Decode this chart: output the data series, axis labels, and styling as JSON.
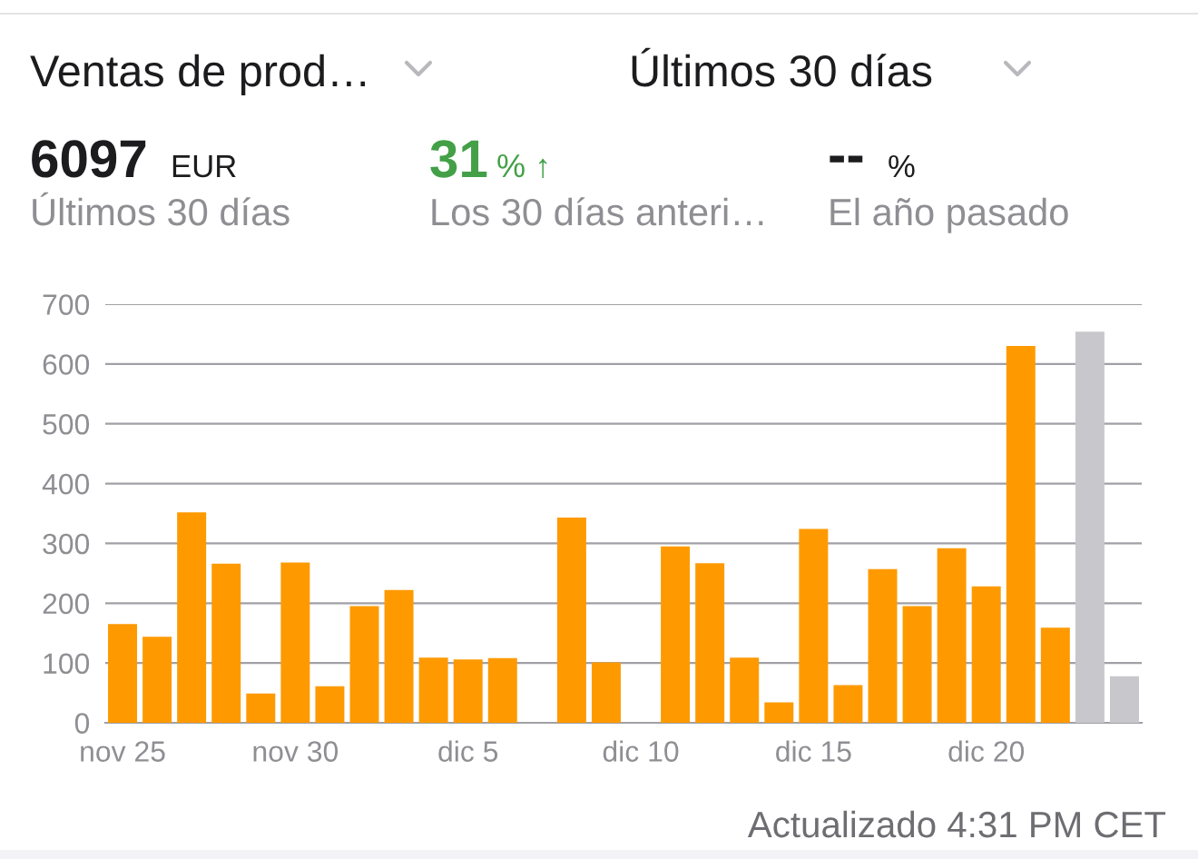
{
  "chart_data": {
    "type": "bar",
    "title": "Ventas de prod…",
    "annotations": [
      "Últimos 30 días",
      "6097",
      "EUR",
      "31",
      "% ↑",
      "--",
      "%",
      "Últimos 30 días",
      "Los 30 días anteri…",
      "El año pasado",
      "Actualizado 4:31 PM CET"
    ],
    "categories": [
      "nov 25",
      null,
      null,
      null,
      null,
      "nov 30",
      null,
      null,
      null,
      null,
      "dic 5",
      null,
      null,
      null,
      null,
      "dic 10",
      null,
      null,
      null,
      null,
      "dic 15",
      null,
      null,
      null,
      null,
      "dic 20",
      null,
      null,
      null,
      null
    ],
    "values": [
      165,
      144,
      352,
      266,
      49,
      268,
      61,
      195,
      222,
      109,
      106,
      108,
      0,
      343,
      101,
      0,
      295,
      267,
      109,
      34,
      324,
      63,
      257,
      195,
      292,
      228,
      630,
      159,
      654,
      78
    ],
    "colors": [
      "#fe9a00",
      "#fe9a00",
      "#fe9a00",
      "#fe9a00",
      "#fe9a00",
      "#fe9a00",
      "#fe9a00",
      "#fe9a00",
      "#fe9a00",
      "#fe9a00",
      "#fe9a00",
      "#fe9a00",
      "#fe9a00",
      "#fe9a00",
      "#fe9a00",
      "#fe9a00",
      "#fe9a00",
      "#fe9a00",
      "#fe9a00",
      "#fe9a00",
      "#fe9a00",
      "#fe9a00",
      "#fe9a00",
      "#fe9a00",
      "#fe9a00",
      "#fe9a00",
      "#fe9a00",
      "#fe9a00",
      "#c7c7cc",
      "#c7c7cc"
    ],
    "ylim": [
      0,
      700
    ],
    "yticks": [
      0,
      100,
      200,
      300,
      400,
      500,
      600,
      700
    ],
    "grid": "y"
  }
}
